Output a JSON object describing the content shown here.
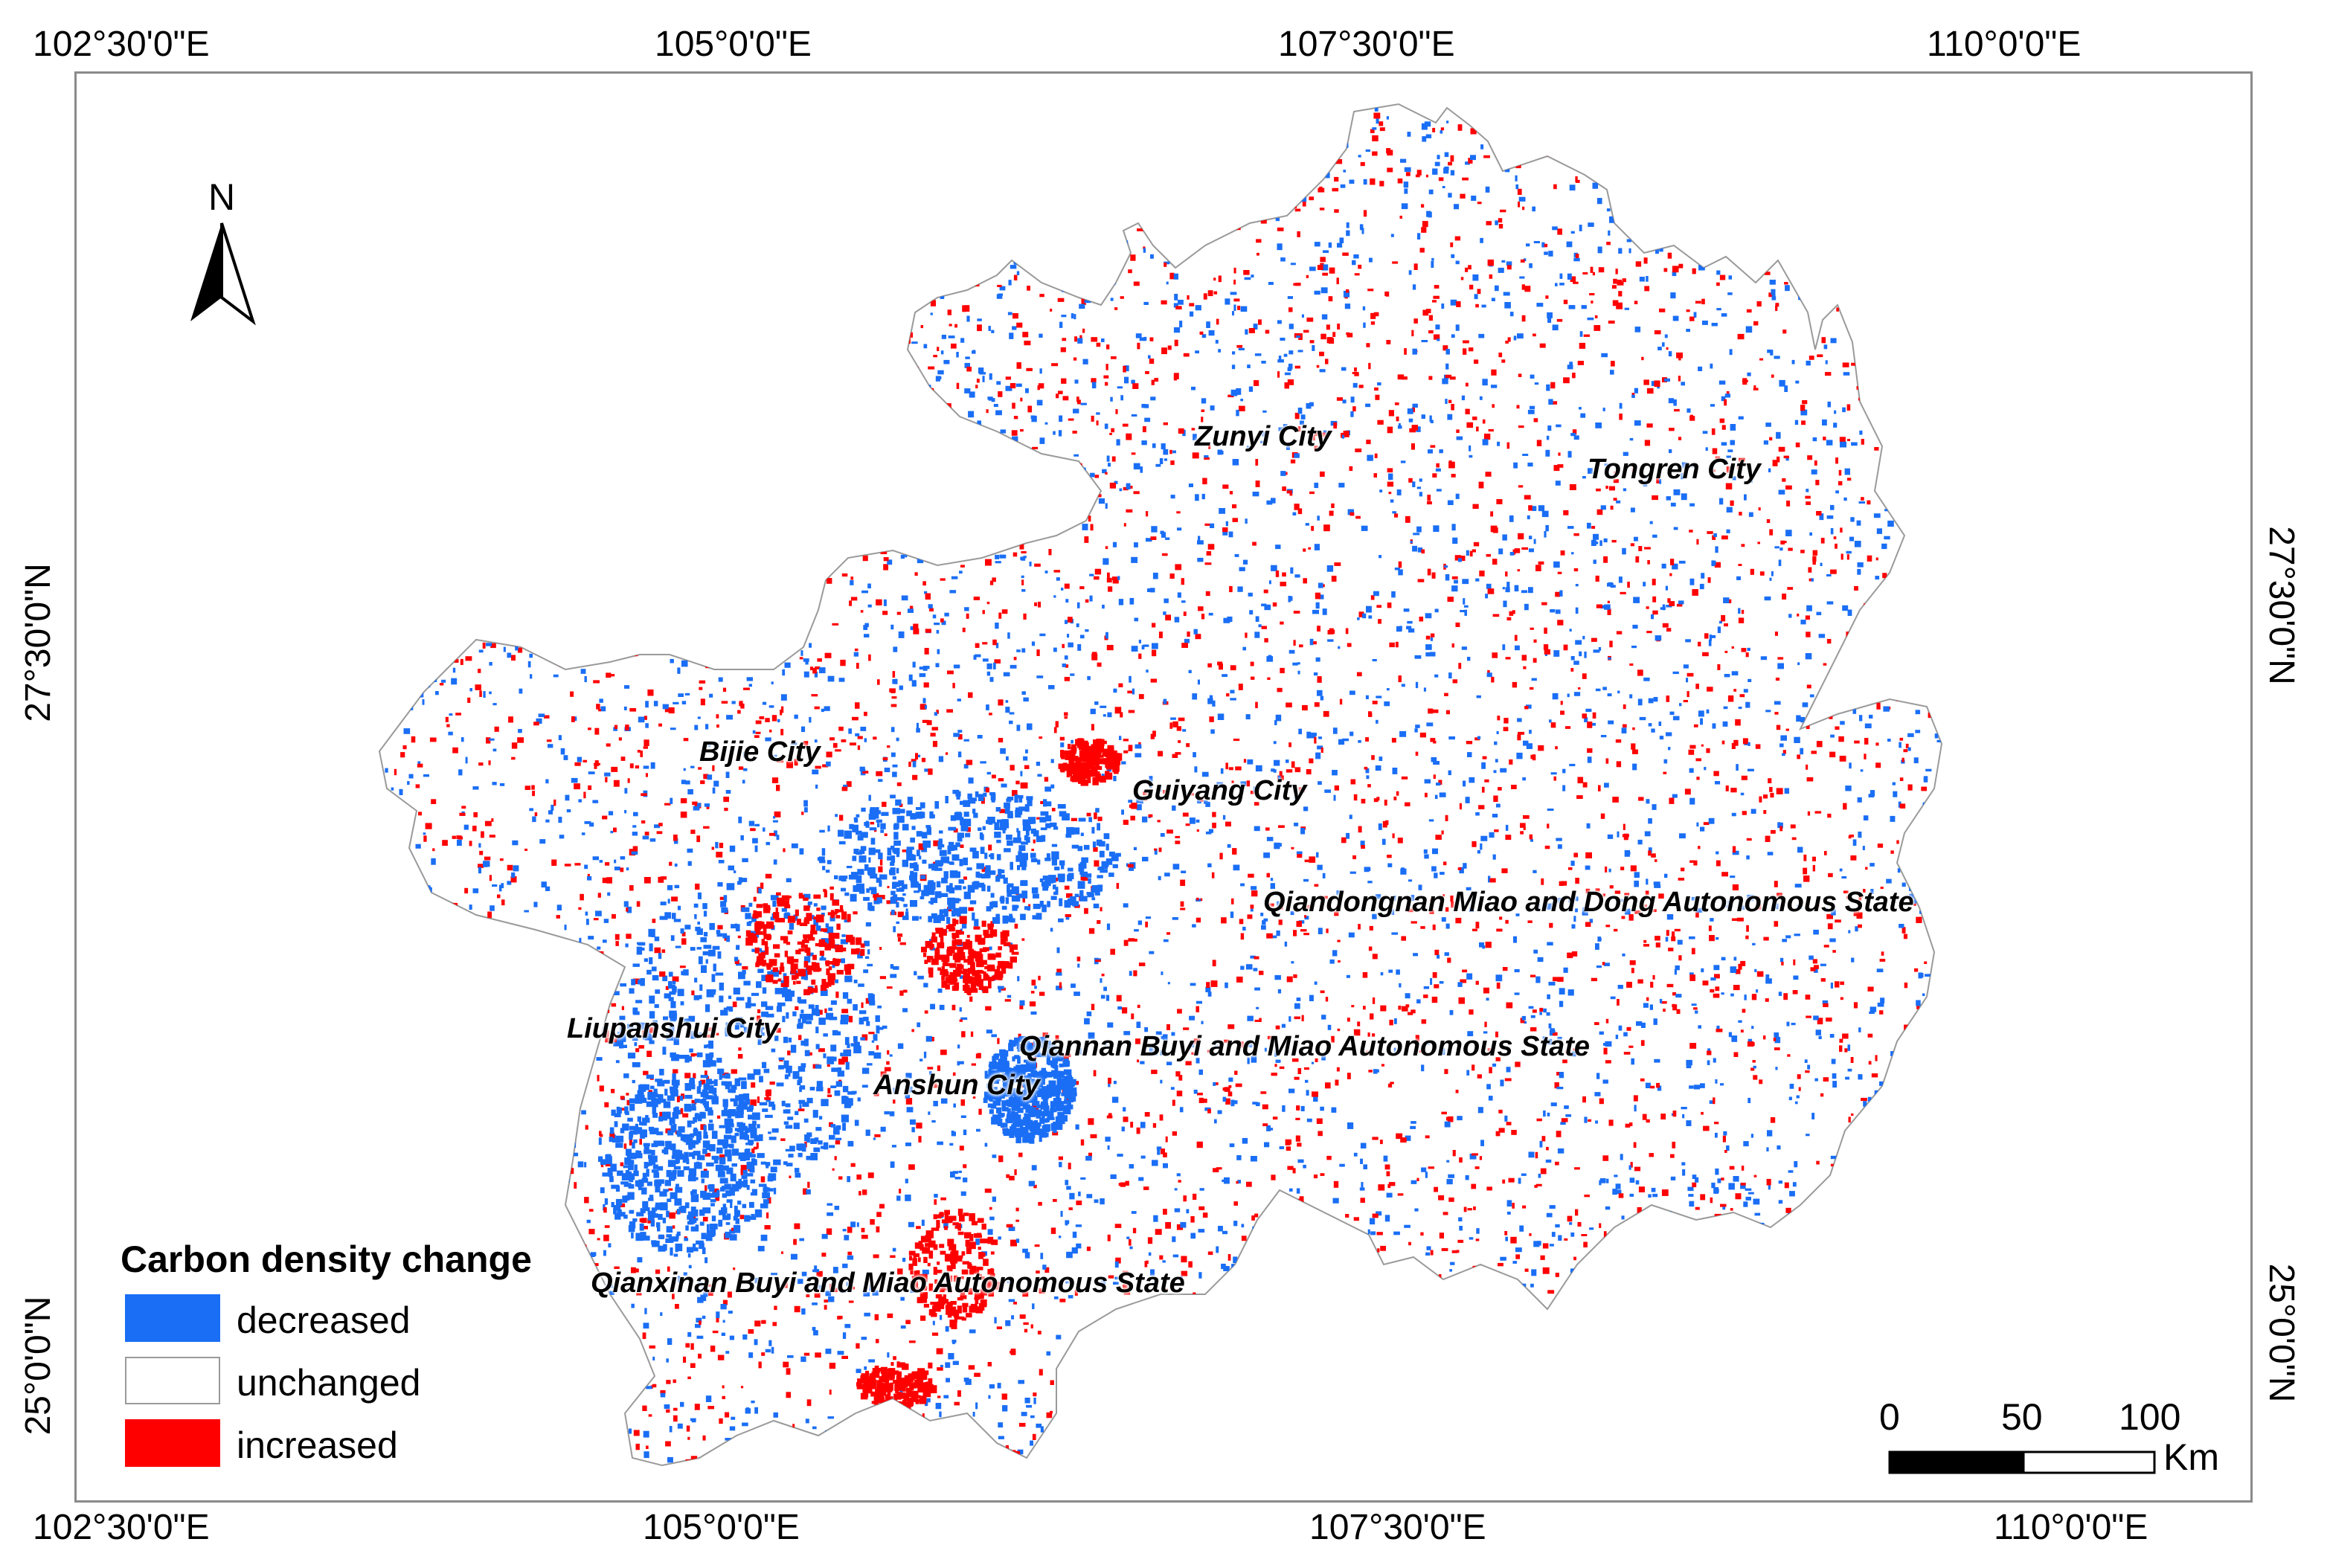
{
  "coordinates": {
    "top": [
      "102°30'0\"E",
      "105°0'0\"E",
      "107°30'0\"E",
      "110°0'0\"E"
    ],
    "bottom": [
      "102°30'0\"E",
      "105°0'0\"E",
      "107°30'0\"E",
      "110°0'0\"E"
    ],
    "left": [
      "27°30'0\"N",
      "25°0'0\"N"
    ],
    "right": [
      "27°30'0\"N",
      "25°0'0\"N"
    ]
  },
  "north_arrow": {
    "label": "N"
  },
  "regions": [
    "Zunyi City",
    "Tongren City",
    "Bijie City",
    "Guiyang City",
    "Qiandongnan Miao and Dong Autonomous State",
    "Liupanshui City",
    "Qiannan Buyi and Miao Autonomous State",
    "Anshun City",
    "Qianxinan Buyi and Miao Autonomous State"
  ],
  "legend": {
    "title": "Carbon density change",
    "items": [
      {
        "label": "decreased",
        "color": "#1a6ef5"
      },
      {
        "label": "unchanged",
        "color": "#ffffff"
      },
      {
        "label": "increased",
        "color": "#ff0000"
      }
    ]
  },
  "scale_bar": {
    "ticks": [
      "0",
      "50",
      "100"
    ],
    "unit": "Km"
  }
}
